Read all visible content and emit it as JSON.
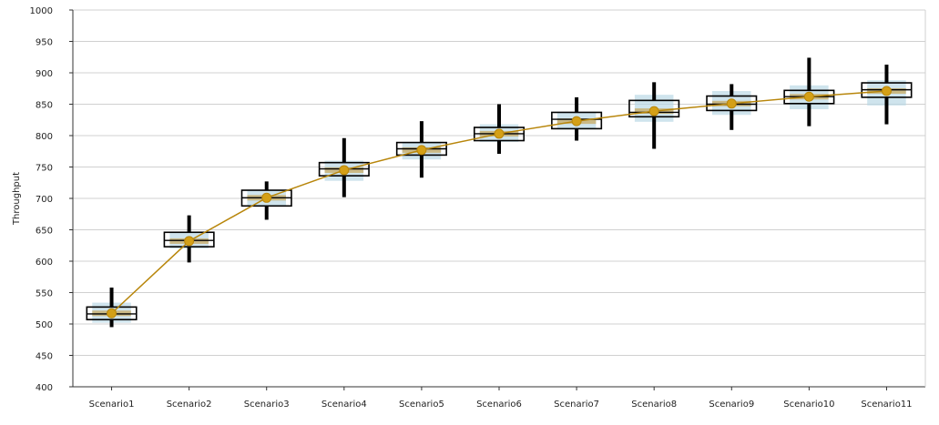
{
  "chart_data": {
    "type": "box",
    "ylabel": "Throughput",
    "xlabel": "",
    "ylim": [
      400,
      1000
    ],
    "yticks": [
      400,
      450,
      500,
      550,
      600,
      650,
      700,
      750,
      800,
      850,
      900,
      950,
      1000
    ],
    "grid": true,
    "categories": [
      "Scenario1",
      "Scenario2",
      "Scenario3",
      "Scenario4",
      "Scenario5",
      "Scenario6",
      "Scenario7",
      "Scenario8",
      "Scenario9",
      "Scenario10",
      "Scenario11"
    ],
    "boxes": [
      {
        "min": 495,
        "q1": 507,
        "median": 516,
        "q3": 527,
        "max": 558
      },
      {
        "min": 598,
        "q1": 623,
        "median": 633,
        "q3": 646,
        "max": 673
      },
      {
        "min": 666,
        "q1": 688,
        "median": 701,
        "q3": 713,
        "max": 727
      },
      {
        "min": 702,
        "q1": 736,
        "median": 747,
        "q3": 757,
        "max": 796
      },
      {
        "min": 733,
        "q1": 769,
        "median": 779,
        "q3": 789,
        "max": 823
      },
      {
        "min": 771,
        "q1": 792,
        "median": 803,
        "q3": 813,
        "max": 850
      },
      {
        "min": 792,
        "q1": 811,
        "median": 826,
        "q3": 837,
        "max": 861
      },
      {
        "min": 779,
        "q1": 830,
        "median": 837,
        "q3": 856,
        "max": 885
      },
      {
        "min": 809,
        "q1": 840,
        "median": 850,
        "q3": 863,
        "max": 882
      },
      {
        "min": 815,
        "q1": 851,
        "median": 862,
        "q3": 872,
        "max": 924
      },
      {
        "min": 818,
        "q1": 861,
        "median": 873,
        "q3": 884,
        "max": 913
      }
    ],
    "confidence_bands": [
      {
        "low": 502,
        "high": 534
      },
      {
        "low": 620,
        "high": 646
      },
      {
        "low": 688,
        "high": 712
      },
      {
        "low": 728,
        "high": 760
      },
      {
        "low": 762,
        "high": 790
      },
      {
        "low": 790,
        "high": 818
      },
      {
        "low": 810,
        "high": 838
      },
      {
        "low": 822,
        "high": 865
      },
      {
        "low": 833,
        "high": 871
      },
      {
        "low": 842,
        "high": 880
      },
      {
        "low": 848,
        "high": 888
      }
    ],
    "mean_series": {
      "values": [
        517,
        632,
        701,
        745,
        777,
        803,
        823,
        839,
        851,
        862,
        871
      ]
    },
    "colors": {
      "box_stroke": "#000000",
      "whisker": "#000000",
      "band_fill": "#b5d6e3",
      "mean_band_fill": "#c8a65a",
      "mean_line": "#b8860b",
      "mean_marker": "#d4a017",
      "grid": "#d0d0d0",
      "axis": "#333333"
    }
  }
}
